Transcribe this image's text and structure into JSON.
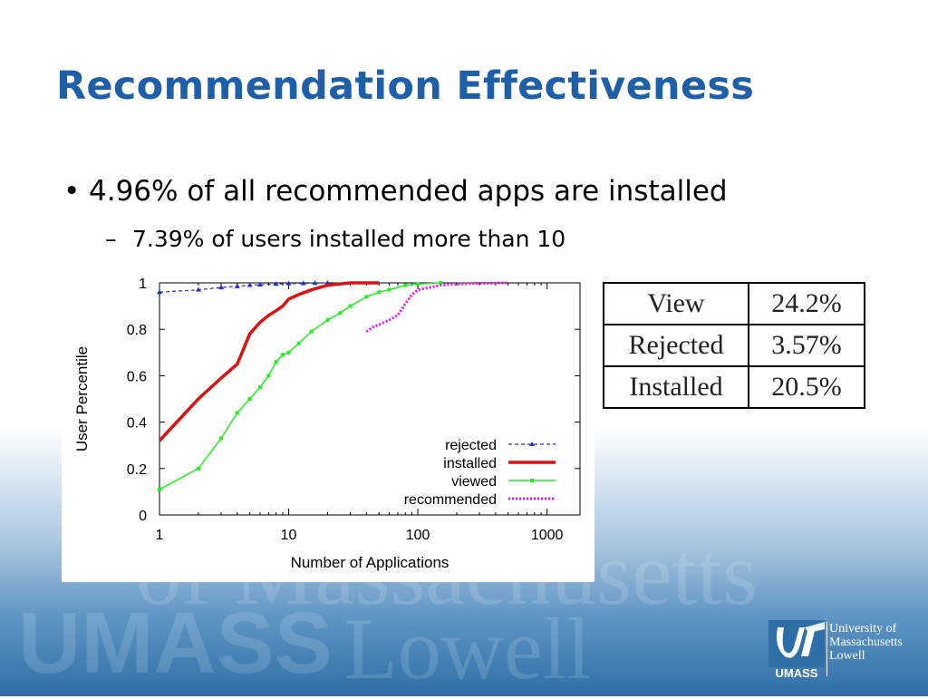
{
  "slide": {
    "title": "Recommendation Effectiveness",
    "bullet1": "4.96% of all recommended apps are installed",
    "bullet2": "7.39% of users installed more than 10"
  },
  "table": [
    {
      "label": "View",
      "value": "24.2%"
    },
    {
      "label": "Rejected",
      "value": "3.57%"
    },
    {
      "label": "Installed",
      "value": "20.5%"
    }
  ],
  "watermark": {
    "line1": "of Massachusetts",
    "line2": "UMASS",
    "line3": "Lowell"
  },
  "logo": {
    "abbr": "UMASS",
    "line1": "University of",
    "line2": "Massachusetts",
    "line3": "Lowell"
  },
  "colors": {
    "title": "#1f5fa9",
    "rejected": "#2233cc",
    "installed": "#dd1111",
    "viewed": "#22ee22",
    "recommended": "#ee11ee"
  },
  "chart_data": {
    "type": "line",
    "xlabel": "Number of Applications",
    "ylabel": "User Percentile",
    "xscale": "log",
    "xlim": [
      1,
      1800
    ],
    "ylim": [
      0,
      1
    ],
    "x_ticks": [
      1,
      10,
      100,
      1000
    ],
    "y_ticks": [
      0,
      0.2,
      0.4,
      0.6,
      0.8,
      1
    ],
    "x_tick_labels": [
      "1",
      "10",
      "100",
      "1000"
    ],
    "y_tick_labels": [
      "0",
      "0.2",
      "0.4",
      "0.6",
      "0.8",
      "1"
    ],
    "legend_position": "bottom-right",
    "series": [
      {
        "name": "rejected",
        "style": "dashed-triangle",
        "x": [
          1,
          2,
          3,
          4,
          5,
          6,
          8,
          10,
          13,
          16,
          20
        ],
        "y": [
          0.96,
          0.97,
          0.98,
          0.985,
          0.99,
          0.992,
          0.995,
          0.997,
          0.998,
          0.999,
          1.0
        ]
      },
      {
        "name": "installed",
        "style": "solid-thick",
        "x": [
          1,
          2,
          3,
          4,
          5,
          6,
          7,
          8,
          9,
          10,
          12,
          15,
          20,
          30,
          50
        ],
        "y": [
          0.32,
          0.5,
          0.59,
          0.65,
          0.78,
          0.83,
          0.86,
          0.88,
          0.9,
          0.93,
          0.95,
          0.97,
          0.99,
          1.0,
          1.0
        ]
      },
      {
        "name": "viewed",
        "style": "solid-square",
        "x": [
          1,
          2,
          3,
          4,
          5,
          6,
          7,
          8,
          9,
          10,
          12,
          15,
          20,
          25,
          30,
          40,
          50,
          60,
          80,
          100,
          150
        ],
        "y": [
          0.11,
          0.2,
          0.33,
          0.44,
          0.5,
          0.55,
          0.6,
          0.66,
          0.69,
          0.7,
          0.74,
          0.79,
          0.84,
          0.87,
          0.9,
          0.94,
          0.96,
          0.97,
          0.99,
          0.995,
          1.0
        ]
      },
      {
        "name": "recommended",
        "style": "dotted",
        "x": [
          40,
          45,
          50,
          60,
          70,
          80,
          90,
          100,
          150,
          200,
          300,
          500
        ],
        "y": [
          0.79,
          0.81,
          0.82,
          0.84,
          0.86,
          0.91,
          0.95,
          0.97,
          0.99,
          0.995,
          0.998,
          1.0
        ]
      }
    ]
  }
}
